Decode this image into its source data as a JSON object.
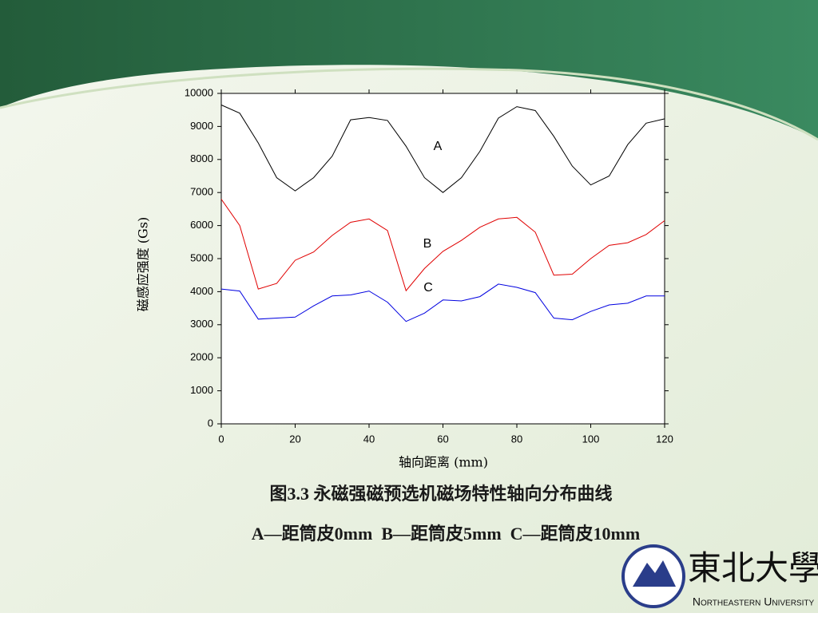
{
  "chart_data": {
    "type": "line",
    "x": [
      0,
      5,
      10,
      15,
      20,
      25,
      30,
      35,
      40,
      45,
      50,
      55,
      60,
      65,
      70,
      75,
      80,
      85,
      90,
      95,
      100,
      105,
      110,
      115,
      120
    ],
    "series": [
      {
        "name": "A",
        "color": "#000000",
        "values": [
          9650,
          9400,
          8500,
          7450,
          7050,
          7450,
          8100,
          9200,
          9270,
          9180,
          8400,
          7450,
          7000,
          7450,
          8250,
          9250,
          9600,
          9480,
          8700,
          7800,
          7230,
          7500,
          8450,
          9100,
          9230
        ]
      },
      {
        "name": "B",
        "color": "#e00000",
        "values": [
          6800,
          6000,
          4080,
          4250,
          4950,
          5200,
          5700,
          6100,
          6200,
          5850,
          4030,
          4700,
          5220,
          5550,
          5950,
          6200,
          6250,
          5800,
          4500,
          4530,
          5000,
          5400,
          5480,
          5730,
          6150
        ]
      },
      {
        "name": "C",
        "color": "#0000e0",
        "values": [
          4080,
          4020,
          3170,
          3200,
          3230,
          3570,
          3870,
          3900,
          4020,
          3680,
          3100,
          3350,
          3750,
          3720,
          3850,
          4230,
          4130,
          3970,
          3200,
          3150,
          3400,
          3600,
          3650,
          3870,
          3870
        ]
      }
    ],
    "xlabel": "轴向距离 (mm)",
    "ylabel": "磁感应强度 (Gs)",
    "xlim": [
      0,
      120
    ],
    "xticks": [
      0,
      20,
      40,
      60,
      80,
      100,
      120
    ],
    "ylim": [
      0,
      10000
    ],
    "yticks": [
      0,
      1000,
      2000,
      3000,
      4000,
      5000,
      6000,
      7000,
      8000,
      9000,
      10000
    ]
  },
  "caption": [
    "图3.3 永磁强磁预选机磁场特性轴向分布曲线",
    "A—距筒皮0mm  B—距筒皮5mm  C—距筒皮10mm"
  ],
  "logo": {
    "name_cn": "東北大學",
    "name_en": "Northeastern University"
  }
}
